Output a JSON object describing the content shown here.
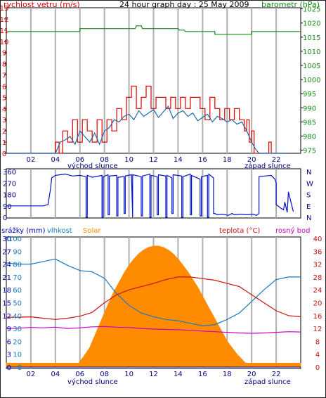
{
  "colors": {
    "wind": "#dd0000",
    "gust": "#dd0000",
    "avg_wind": "#1a6aa8",
    "pressure": "#1a8a1a",
    "direction": "#0010cc",
    "humidity": "#1a7ac0",
    "solar": "#ff8c00",
    "temperature": "#cc1111",
    "dew_point": "#cc00cc",
    "rain": "#0000bb",
    "grid": "#b0b0b0"
  },
  "chart_data": [
    {
      "type": "line",
      "title": "24 hour graph day : 25 May 2009",
      "left_axis_label": "rychlost vetru (m/s)",
      "right_axis_label": "barometr (hPa)",
      "x_ticks": [
        "02",
        "04",
        "06",
        "08",
        "10",
        "12",
        "14",
        "16",
        "18",
        "20",
        "22"
      ],
      "sunrise_label": "východ slunce",
      "sunset_label": "západ slunce",
      "sunrise_hour": 4.6,
      "sunset_hour": 20.1,
      "ylim_left": [
        0,
        13
      ],
      "yticks_left": [
        0,
        1,
        2,
        3,
        4,
        5,
        6,
        7,
        8,
        9,
        10,
        11,
        12,
        13
      ],
      "ylim_right": [
        973.9,
        1025.4
      ],
      "yticks_right": [
        975,
        980,
        985,
        990,
        995,
        1000,
        1005,
        1010,
        1015,
        1020,
        1025
      ],
      "series": [
        {
          "role": "wind_gust",
          "x": [
            0,
            3.9,
            4.0,
            4.3,
            4.6,
            5.0,
            5.4,
            5.8,
            6.2,
            6.6,
            7.0,
            7.4,
            7.8,
            8.2,
            8.6,
            9.0,
            9.4,
            9.8,
            10.2,
            10.6,
            11.0,
            11.4,
            11.8,
            12.2,
            12.6,
            13.0,
            13.4,
            13.8,
            14.2,
            14.6,
            15.0,
            15.4,
            15.8,
            16.2,
            16.6,
            17.0,
            17.4,
            17.8,
            18.2,
            18.6,
            19.0,
            19.4,
            19.6,
            19.8,
            20.0,
            20.2,
            20.6,
            21.0,
            21.4,
            21.6,
            22.0,
            22.4,
            23.0
          ],
          "y": [
            0,
            0,
            1.0,
            0,
            2.0,
            1.0,
            3.0,
            1.0,
            3.0,
            2.0,
            1.0,
            3.0,
            1.0,
            3.0,
            2.0,
            4.0,
            3.0,
            5.0,
            6.0,
            4.0,
            5.0,
            6.0,
            4.0,
            5.0,
            5.0,
            4.0,
            5.0,
            4.0,
            5.0,
            4.0,
            5.0,
            5.0,
            4.0,
            3.0,
            5.0,
            4.0,
            3.0,
            4.0,
            3.0,
            4.0,
            3.0,
            2.0,
            3.0,
            1.0,
            2.0,
            0,
            0,
            0,
            1.0,
            0,
            0,
            0,
            0
          ]
        },
        {
          "role": "wind_avg",
          "x": [
            0,
            4.0,
            4.4,
            4.8,
            5.2,
            5.6,
            6.0,
            6.4,
            6.8,
            7.2,
            7.6,
            8.0,
            8.4,
            8.8,
            9.2,
            9.6,
            10.0,
            10.4,
            10.8,
            11.2,
            11.6,
            12.0,
            12.4,
            12.8,
            13.2,
            13.6,
            14.0,
            14.4,
            14.8,
            15.2,
            15.6,
            16.0,
            16.4,
            16.8,
            17.2,
            17.6,
            18.0,
            18.4,
            18.8,
            19.2,
            19.6,
            20.0,
            20.3,
            20.6,
            23.0
          ],
          "y": [
            0,
            0,
            1.0,
            1.2,
            1.5,
            0.8,
            2.0,
            1.5,
            1.0,
            1.8,
            0.8,
            2.0,
            2.3,
            3.0,
            2.8,
            3.3,
            3.5,
            3.0,
            3.8,
            3.3,
            3.6,
            3.9,
            3.2,
            3.7,
            4.2,
            3.1,
            3.6,
            3.8,
            3.3,
            3.6,
            2.9,
            3.2,
            3.5,
            2.8,
            3.3,
            3.1,
            2.8,
            3.0,
            2.6,
            2.8,
            2.0,
            1.0,
            0.4,
            0,
            0
          ]
        },
        {
          "role": "pressure",
          "x": [
            0,
            6.0,
            6.0,
            10.5,
            10.6,
            11.0,
            11.1,
            14.0,
            14.1,
            14.5,
            14.6,
            17.0,
            17.0,
            20.0,
            20.0,
            24.0
          ],
          "y": [
            1017,
            1017,
            1018,
            1018,
            1019,
            1019,
            1018,
            1018,
            1017.5,
            1017.5,
            1017,
            1017,
            1016,
            1016,
            1017,
            1017
          ]
        }
      ]
    },
    {
      "type": "line",
      "title": "",
      "right_axis_labels": [
        "N",
        "W",
        "S",
        "E",
        "N"
      ],
      "ylim": [
        0,
        360
      ],
      "yticks": [
        0,
        90,
        180,
        270,
        360
      ],
      "series": [
        {
          "role": "wind_direction",
          "x": [
            0,
            3.0,
            3.4,
            3.6,
            3.7,
            4.0,
            4.8,
            5.4,
            6.0,
            6.5,
            6.5,
            6.6,
            6.6,
            7.0,
            7.8,
            7.8,
            7.9,
            7.9,
            8.3,
            8.3,
            8.4,
            8.4,
            9.0,
            9.0,
            9.1,
            9.1,
            9.6,
            9.6,
            9.7,
            9.7,
            10.2,
            10.3,
            10.3,
            11.0,
            11.0,
            11.1,
            11.1,
            11.7,
            11.7,
            11.8,
            11.8,
            12.3,
            12.3,
            12.4,
            12.4,
            13.0,
            13.0,
            13.1,
            13.1,
            13.5,
            13.5,
            13.6,
            13.6,
            14.3,
            14.3,
            14.4,
            14.4,
            15.0,
            15.0,
            15.1,
            15.1,
            15.8,
            15.8,
            15.9,
            15.9,
            16.4,
            16.4,
            16.5,
            16.5,
            16.9,
            16.9,
            17.0,
            17.2,
            17.6,
            18.1,
            18.4,
            18.6,
            19.1,
            19.6,
            20.1,
            20.4,
            20.6,
            20.6,
            21.6,
            21.9,
            22.0,
            22.0,
            22.4,
            22.6,
            22.7,
            22.9,
            23.0,
            23.4
          ],
          "y": [
            90,
            90,
            100,
            220,
            310,
            330,
            340,
            325,
            330,
            320,
            0,
            0,
            330,
            315,
            330,
            0,
            0,
            320,
            335,
            20,
            20,
            325,
            330,
            10,
            10,
            315,
            320,
            30,
            30,
            325,
            335,
            0,
            335,
            320,
            10,
            10,
            325,
            340,
            0,
            0,
            330,
            320,
            20,
            20,
            335,
            325,
            0,
            0,
            330,
            310,
            30,
            30,
            335,
            325,
            0,
            0,
            320,
            340,
            20,
            20,
            330,
            300,
            10,
            10,
            320,
            330,
            0,
            0,
            340,
            310,
            30,
            30,
            20,
            25,
            15,
            30,
            20,
            25,
            20,
            25,
            15,
            30,
            320,
            330,
            300,
            270,
            100,
            70,
            60,
            120,
            40,
            200,
            45
          ]
        }
      ]
    },
    {
      "type": "area",
      "title": "",
      "header_labels": {
        "rain": "srážky (mm)",
        "humidity": "vlhkost",
        "solar": "Solar",
        "temperature": "teplota (°C)",
        "dew_point": "rosný bod"
      },
      "x_ticks": [
        "02",
        "04",
        "06",
        "08",
        "10",
        "12",
        "14",
        "16",
        "18",
        "20",
        "22"
      ],
      "sunrise_label": "východ slunce",
      "sunset_label": "západ slunce",
      "ylim_rain": [
        0,
        30
      ],
      "yticks_rain": [
        0,
        3,
        6,
        9,
        12,
        15,
        18,
        21,
        24,
        27,
        30
      ],
      "ylim_humidity": [
        0,
        100
      ],
      "yticks_humidity": [
        0,
        10,
        20,
        30,
        40,
        50,
        60,
        70,
        80,
        90,
        100
      ],
      "ylim_temp": [
        0,
        40
      ],
      "yticks_temp": [
        0,
        4,
        8,
        12,
        16,
        20,
        24,
        28,
        32,
        36,
        40
      ],
      "series": [
        {
          "role": "solar",
          "x": [
            0,
            5.9,
            6.3,
            6.8,
            7.2,
            7.6,
            8.0,
            8.4,
            8.8,
            9.2,
            9.6,
            10.0,
            10.4,
            10.8,
            11.2,
            11.6,
            12.0,
            12.4,
            12.8,
            13.2,
            13.6,
            14.0,
            14.4,
            14.8,
            15.2,
            15.6,
            16.0,
            16.4,
            16.8,
            17.2,
            17.6,
            18.0,
            18.4,
            18.8,
            19.2,
            19.5,
            19.8,
            24.0
          ],
          "y": [
            3,
            3,
            8,
            15,
            24,
            33,
            42,
            51,
            59,
            66,
            73,
            79,
            84,
            88,
            91,
            93,
            94,
            94,
            93,
            91,
            88,
            84,
            79,
            74,
            68,
            62,
            55,
            48,
            41,
            34,
            27,
            20,
            15,
            10,
            6,
            3,
            3,
            3
          ]
        },
        {
          "role": "humidity",
          "x": [
            0,
            1.0,
            2.0,
            3.0,
            4.0,
            5.0,
            6.0,
            7.0,
            8.0,
            9.0,
            10.0,
            11.0,
            12.0,
            13.0,
            14.0,
            15.0,
            16.0,
            17.0,
            18.0,
            19.0,
            20.0,
            21.0,
            22.0,
            23.0,
            24.0
          ],
          "y": [
            81,
            80,
            80,
            82,
            84,
            79,
            75,
            74,
            69,
            57,
            48,
            42,
            39,
            37,
            36,
            34,
            32,
            33,
            37,
            42,
            51,
            60,
            68,
            70,
            70
          ]
        },
        {
          "role": "temperature",
          "x": [
            0,
            1.0,
            2.0,
            3.0,
            4.0,
            5.0,
            6.0,
            7.0,
            8.0,
            9.0,
            10.0,
            11.0,
            12.0,
            13.0,
            14.0,
            15.0,
            16.0,
            17.0,
            18.0,
            19.0,
            20.0,
            21.0,
            22.0,
            23.0,
            24.0
          ],
          "y": [
            15.5,
            15.5,
            15.6,
            15.2,
            14.8,
            15.2,
            15.8,
            17.0,
            20.0,
            22.5,
            24.0,
            25.0,
            26.0,
            27.2,
            28.0,
            28.0,
            27.5,
            27.0,
            26.0,
            25.0,
            22.5,
            20.0,
            17.5,
            16.0,
            15.6
          ]
        },
        {
          "role": "dew_point",
          "x": [
            0,
            1.0,
            2.0,
            3.0,
            4.0,
            5.0,
            6.0,
            7.0,
            8.0,
            9.0,
            10.0,
            11.0,
            12.0,
            13.0,
            14.0,
            15.0,
            16.0,
            17.0,
            18.0,
            19.0,
            20.0,
            21.0,
            22.0,
            23.0,
            24.0
          ],
          "y": [
            12.0,
            12.1,
            12.3,
            12.2,
            12.4,
            12.0,
            12.2,
            12.5,
            12.6,
            12.4,
            12.3,
            12.0,
            11.8,
            11.7,
            11.6,
            11.4,
            11.2,
            11.0,
            10.8,
            10.6,
            10.5,
            10.6,
            10.8,
            11.0,
            10.9
          ]
        },
        {
          "role": "rain",
          "x": [
            0,
            24.0
          ],
          "y": [
            0,
            0
          ]
        }
      ]
    }
  ]
}
